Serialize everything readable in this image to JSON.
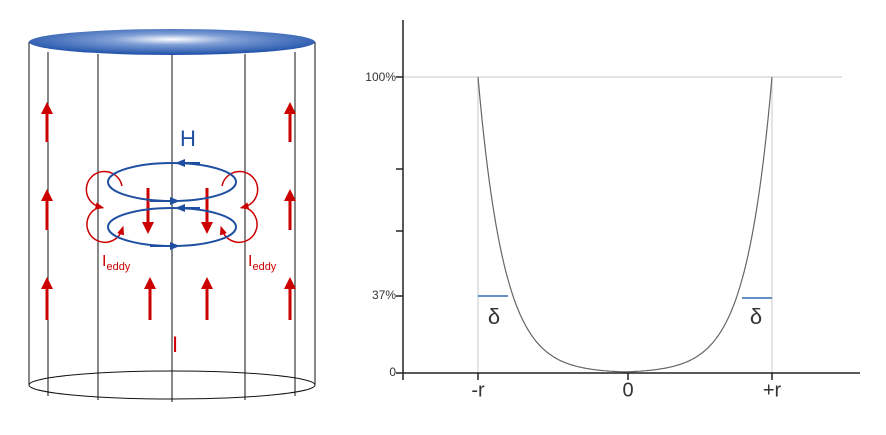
{
  "left": {
    "h_label": "H",
    "eddy_labels": [
      {
        "main": "I",
        "sub": "eddy"
      },
      {
        "main": "I",
        "sub": "eddy"
      }
    ],
    "current_label": "I"
  },
  "right": {
    "y_labels": [
      "100%",
      "37%",
      "0"
    ],
    "x_labels": [
      "-r",
      "0",
      "+r"
    ],
    "delta_labels": [
      "δ",
      "δ"
    ]
  }
}
